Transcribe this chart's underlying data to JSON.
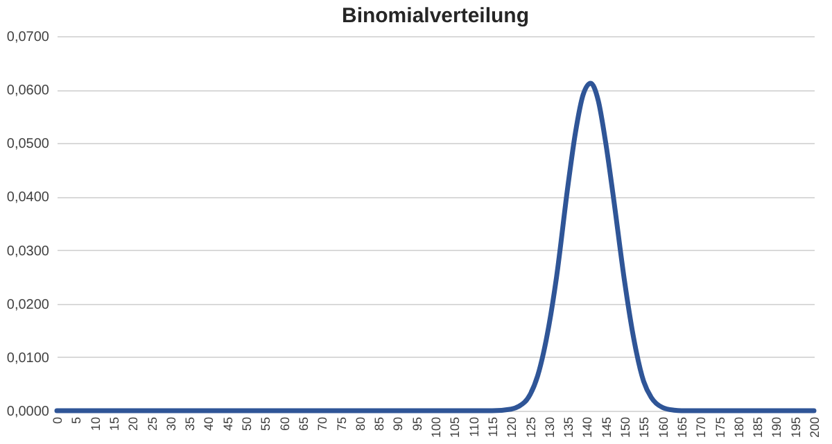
{
  "chart_data": {
    "type": "line",
    "title": "Binomialverteilung",
    "x": [
      0,
      50,
      100,
      115,
      120,
      122,
      125,
      127,
      130,
      132,
      135,
      137,
      139,
      141,
      143,
      145,
      147,
      150,
      152,
      155,
      157,
      160,
      163,
      165,
      200
    ],
    "series": [
      {
        "color": "#2f5597",
        "values": [
          0,
          0,
          0,
          0,
          0.0003,
          0.0008,
          0.003,
          0.0065,
          0.016,
          0.025,
          0.042,
          0.052,
          0.059,
          0.0612,
          0.058,
          0.05,
          0.04,
          0.024,
          0.015,
          0.0055,
          0.0025,
          0.0006,
          0.0001,
          0,
          0
        ]
      }
    ],
    "xlim": [
      0,
      200
    ],
    "xticks": [
      0,
      5,
      10,
      15,
      20,
      25,
      30,
      35,
      40,
      45,
      50,
      55,
      60,
      65,
      70,
      75,
      80,
      85,
      90,
      95,
      100,
      105,
      110,
      115,
      120,
      125,
      130,
      135,
      140,
      145,
      150,
      155,
      160,
      165,
      170,
      175,
      180,
      185,
      190,
      195,
      200
    ],
    "ylim": [
      0,
      0.07
    ],
    "yticks": [
      {
        "value": 0,
        "label": "0,0000"
      },
      {
        "value": 0.01,
        "label": "0,0100"
      },
      {
        "value": 0.02,
        "label": "0,0200"
      },
      {
        "value": 0.03,
        "label": "0,0300"
      },
      {
        "value": 0.04,
        "label": "0,0400"
      },
      {
        "value": 0.05,
        "label": "0,0500"
      },
      {
        "value": 0.06,
        "label": "0,0600"
      },
      {
        "value": 0.07,
        "label": "0,0700"
      }
    ],
    "grid": "y",
    "marker": "none",
    "line_style": "solid"
  }
}
